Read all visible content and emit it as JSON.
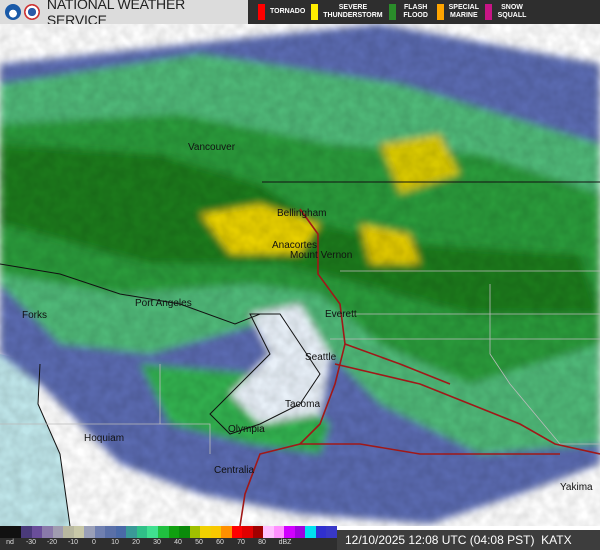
{
  "header": {
    "title": "NATIONAL WEATHER SERVICE",
    "logos": [
      "noaa-logo",
      "nws-logo"
    ]
  },
  "warnings": [
    {
      "label": "TORNADO",
      "color": "#ff0000"
    },
    {
      "label": "SEVERE\nTHUNDERSTORM",
      "color": "#ffee00"
    },
    {
      "label": "FLASH\nFLOOD",
      "color": "#2a8c2a"
    },
    {
      "label": "SPECIAL\nMARINE",
      "color": "#ffa500"
    },
    {
      "label": "SNOW\nSQUALL",
      "color": "#c71585"
    }
  ],
  "map": {
    "cities": [
      "Vancouver",
      "Bellingham",
      "Anacortes",
      "Mount Vernon",
      "Port Angeles",
      "Forks",
      "Everett",
      "Seattle",
      "Tacoma",
      "Olympia",
      "Hoquiam",
      "Centralia",
      "Yakima"
    ]
  },
  "legend": {
    "ticks": [
      "nd",
      "-30",
      "-20",
      "-10",
      "0",
      "10",
      "20",
      "30",
      "40",
      "50",
      "60",
      "70",
      "80",
      "dBZ"
    ],
    "colors": [
      "#111111",
      "#111111",
      "#4a3a7a",
      "#6a4e9a",
      "#8a7aaa",
      "#a09cb0",
      "#b8b8a0",
      "#c8c8a8",
      "#9aa0b8",
      "#7080b0",
      "#5a70a8",
      "#4a6aa8",
      "#3a9a98",
      "#30c088",
      "#40e090",
      "#20c040",
      "#10a010",
      "#0a8a0a",
      "#a0c000",
      "#f0d000",
      "#f8c800",
      "#ff9000",
      "#ff0000",
      "#e00000",
      "#a00000",
      "#ffc0ff",
      "#ff90ff",
      "#d000ff",
      "#a000e0",
      "#00e0f0",
      "#3030d0",
      "#3838c8"
    ],
    "timestamp": "12/10/2025 12:08 UTC (04:08 PST)",
    "station": "KATX"
  }
}
